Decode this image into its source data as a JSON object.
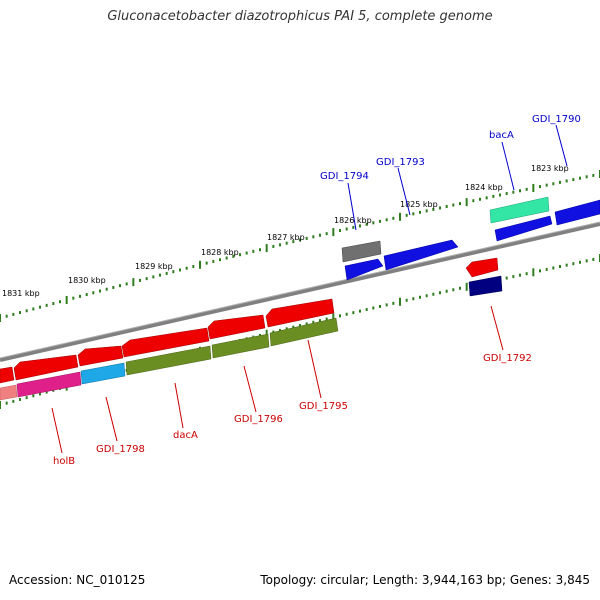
{
  "title": "Gluconacetobacter diazotrophicus PAI 5, complete genome",
  "footer": {
    "accession": "Accession: NC_010125",
    "topology": "Topology: circular; Length: 3,944,163 bp; Genes: 3,845"
  },
  "colors": {
    "backbone": "#808080",
    "tick": "#2e7d1e",
    "label_forward": "#0000cc",
    "label_reverse": "#cc0000"
  },
  "kbp_labels": [
    "1823 kbp",
    "1824 kbp",
    "1825 kbp",
    "1826 kbp",
    "1827 kbp",
    "1828 kbp",
    "1829 kbp",
    "1830 kbp",
    "1831 kbp"
  ],
  "forward_labels": [
    "GDI_1790",
    "bacA",
    "GDI_1793",
    "GDI_1794"
  ],
  "reverse_labels": [
    "GDI_1792",
    "GDI_1795",
    "GDI_1796",
    "dacA",
    "GDI_1798",
    "holB"
  ]
}
